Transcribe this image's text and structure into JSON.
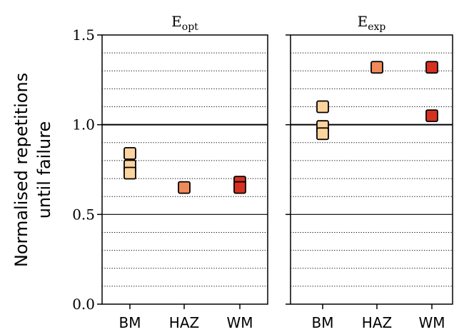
{
  "chart_data": {
    "type": "scatter",
    "ylabel_line1": "Normalised repetitions",
    "ylabel_line2": "until failure",
    "ylim": [
      0.0,
      1.5
    ],
    "yticks": [
      {
        "value": 0.0,
        "label": "0.0"
      },
      {
        "value": 0.5,
        "label": "0.5"
      },
      {
        "value": 1.0,
        "label": "1.0"
      },
      {
        "value": 1.5,
        "label": "1.5"
      }
    ],
    "minor_grid_step": 0.1,
    "grid": "dotted minor, solid at 0.5 and 1.0",
    "categories": [
      "BM",
      "HAZ",
      "WM"
    ],
    "colors": {
      "BM": "#fdd49e",
      "HAZ": "#f08a5a",
      "WM": "#d7301f"
    },
    "panels": [
      {
        "title_base": "E",
        "title_sub": "opt",
        "points": [
          {
            "category": "BM",
            "y": 0.84
          },
          {
            "category": "BM",
            "y": 0.77
          },
          {
            "category": "BM",
            "y": 0.73
          },
          {
            "category": "HAZ",
            "y": 0.65
          },
          {
            "category": "WM",
            "y": 0.68
          },
          {
            "category": "WM",
            "y": 0.65
          }
        ]
      },
      {
        "title_base": "E",
        "title_sub": "exp",
        "points": [
          {
            "category": "BM",
            "y": 1.1
          },
          {
            "category": "BM",
            "y": 0.99
          },
          {
            "category": "BM",
            "y": 0.95
          },
          {
            "category": "HAZ",
            "y": 1.32
          },
          {
            "category": "WM",
            "y": 1.32
          },
          {
            "category": "WM",
            "y": 1.05
          }
        ]
      }
    ]
  }
}
